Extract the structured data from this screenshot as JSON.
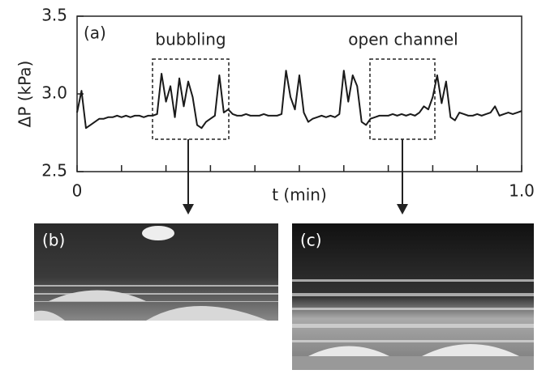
{
  "chart_data": {
    "type": "line",
    "y_label": "ΔP (kPa)",
    "x_label": "t (min)",
    "annotations": {
      "panel": "(a)",
      "left_box": "bubbling",
      "right_box": "open channel",
      "image_b": "(b)",
      "image_c": "(c)"
    },
    "color": "#1a1a1a",
    "xlim": [
      0,
      1.0
    ],
    "ylim": [
      2.5,
      3.5
    ],
    "xticks": [
      0,
      {
        "value": 1.0,
        "label": "1.0"
      }
    ],
    "xminorticks": [
      0.1,
      0.2,
      0.3,
      0.4,
      0.5,
      0.6,
      0.7,
      0.8,
      0.9
    ],
    "yticks": [
      2.5,
      {
        "value": 3.0,
        "label": "3.0"
      },
      3.5
    ],
    "x": [
      0,
      0.01,
      0.02,
      0.03,
      0.04,
      0.05,
      0.06,
      0.07,
      0.08,
      0.09,
      0.1,
      0.11,
      0.12,
      0.13,
      0.14,
      0.15,
      0.16,
      0.17,
      0.18,
      0.19,
      0.2,
      0.21,
      0.22,
      0.23,
      0.24,
      0.25,
      0.26,
      0.27,
      0.28,
      0.29,
      0.3,
      0.31,
      0.32,
      0.33,
      0.34,
      0.35,
      0.36,
      0.37,
      0.38,
      0.39,
      0.4,
      0.41,
      0.42,
      0.43,
      0.44,
      0.45,
      0.46,
      0.47,
      0.48,
      0.49,
      0.5,
      0.51,
      0.52,
      0.53,
      0.54,
      0.55,
      0.56,
      0.57,
      0.58,
      0.59,
      0.6,
      0.61,
      0.62,
      0.63,
      0.64,
      0.65,
      0.66,
      0.67,
      0.68,
      0.69,
      0.7,
      0.71,
      0.72,
      0.73,
      0.74,
      0.75,
      0.76,
      0.77,
      0.78,
      0.79,
      0.8,
      0.81,
      0.82,
      0.83,
      0.84,
      0.85,
      0.86,
      0.87,
      0.88,
      0.89,
      0.9,
      0.91,
      0.92,
      0.93,
      0.94,
      0.95,
      0.96,
      0.97,
      0.98,
      0.99,
      1.0
    ],
    "values": [
      2.88,
      3.02,
      2.78,
      2.8,
      2.82,
      2.84,
      2.84,
      2.85,
      2.85,
      2.86,
      2.85,
      2.86,
      2.85,
      2.86,
      2.86,
      2.85,
      2.86,
      2.86,
      2.87,
      3.13,
      2.95,
      3.05,
      2.85,
      3.1,
      2.92,
      3.08,
      2.98,
      2.8,
      2.78,
      2.82,
      2.84,
      2.86,
      3.12,
      2.88,
      2.9,
      2.87,
      2.86,
      2.86,
      2.87,
      2.86,
      2.86,
      2.86,
      2.87,
      2.86,
      2.86,
      2.86,
      2.87,
      3.15,
      2.98,
      2.9,
      3.12,
      2.88,
      2.82,
      2.84,
      2.85,
      2.86,
      2.85,
      2.86,
      2.85,
      2.87,
      3.15,
      2.95,
      3.12,
      3.05,
      2.82,
      2.8,
      2.84,
      2.85,
      2.86,
      2.86,
      2.86,
      2.87,
      2.86,
      2.87,
      2.86,
      2.87,
      2.86,
      2.88,
      2.92,
      2.9,
      2.98,
      3.12,
      2.94,
      3.08,
      2.85,
      2.83,
      2.88,
      2.87,
      2.86,
      2.86,
      2.87,
      2.86,
      2.87,
      2.88,
      2.92,
      2.86,
      2.87,
      2.88,
      2.87,
      2.88,
      2.89
    ]
  }
}
